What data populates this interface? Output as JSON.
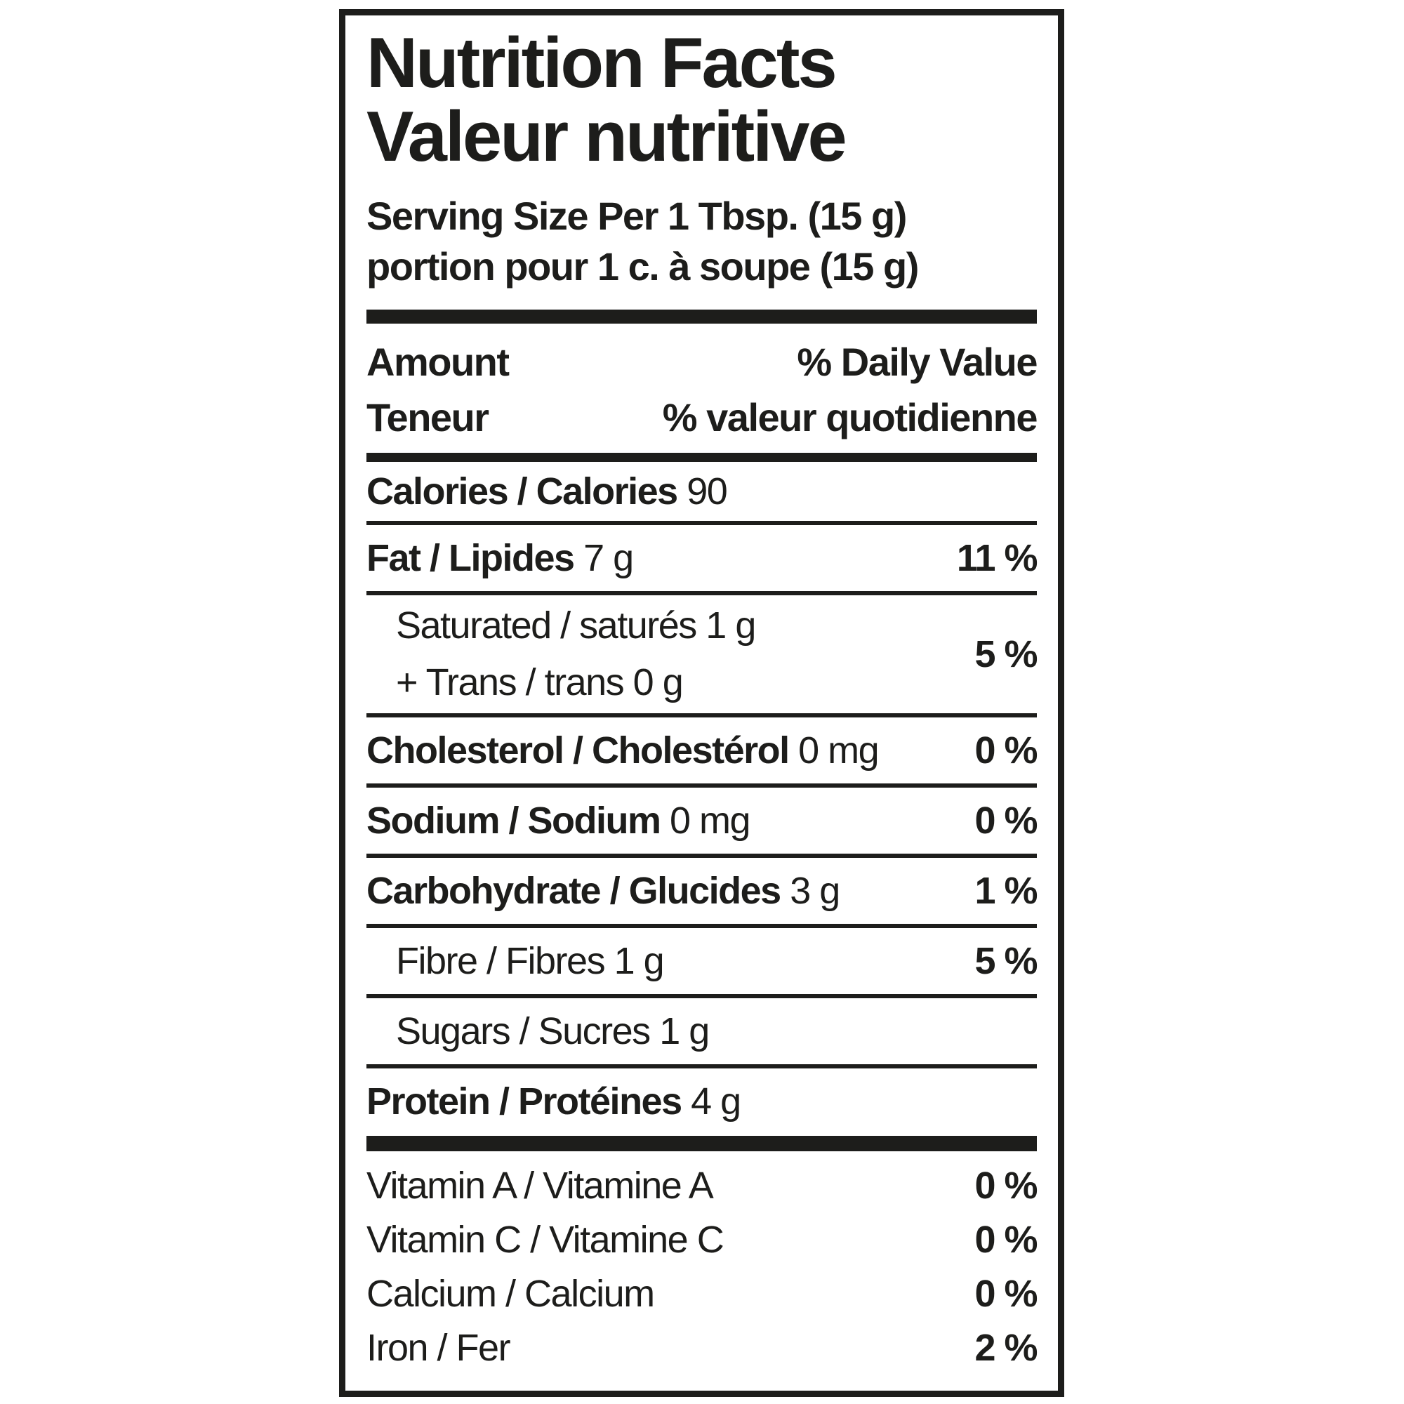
{
  "label": {
    "title_en": "Nutrition Facts",
    "title_fr": "Valeur nutritive",
    "serving_en": "Serving Size Per 1 Tbsp. (15 g)",
    "serving_fr": "portion pour 1 c. à soupe (15 g)",
    "header": {
      "amount_en": "Amount",
      "amount_fr": "Teneur",
      "daily_value_en": "% Daily Value",
      "daily_value_fr": "% valeur quotidienne"
    },
    "calories": {
      "name": "Calories / Calories",
      "value": "90"
    },
    "rows": {
      "fat": {
        "name": "Fat / Lipides",
        "value": "7 g",
        "dv": "11 %"
      },
      "saturated": {
        "name": "Saturated / saturés",
        "value": "1 g"
      },
      "trans": {
        "name": "+ Trans / trans",
        "value": "0 g"
      },
      "saturated_trans_dv": "5 %",
      "cholesterol": {
        "name": "Cholesterol / Cholestérol",
        "value": "0 mg",
        "dv": "0 %"
      },
      "sodium": {
        "name": "Sodium / Sodium",
        "value": "0 mg",
        "dv": "0 %"
      },
      "carbohydrate": {
        "name": "Carbohydrate / Glucides",
        "value": "3 g",
        "dv": "1 %"
      },
      "fibre": {
        "name": "Fibre / Fibres",
        "value": "1 g",
        "dv": "5 %"
      },
      "sugars": {
        "name": "Sugars / Sucres",
        "value": "1 g"
      },
      "protein": {
        "name": "Protein / Protéines",
        "value": "4 g"
      }
    },
    "micronutrients": {
      "vitamin_a": {
        "name": "Vitamin A / Vitamine A",
        "dv": "0 %"
      },
      "vitamin_c": {
        "name": "Vitamin C / Vitamine C",
        "dv": "0 %"
      },
      "calcium": {
        "name": "Calcium / Calcium",
        "dv": "0 %"
      },
      "iron": {
        "name": "Iron / Fer",
        "dv": "2 %"
      }
    },
    "colors": {
      "text": "#1d1d1b",
      "background": "#ffffff"
    }
  }
}
